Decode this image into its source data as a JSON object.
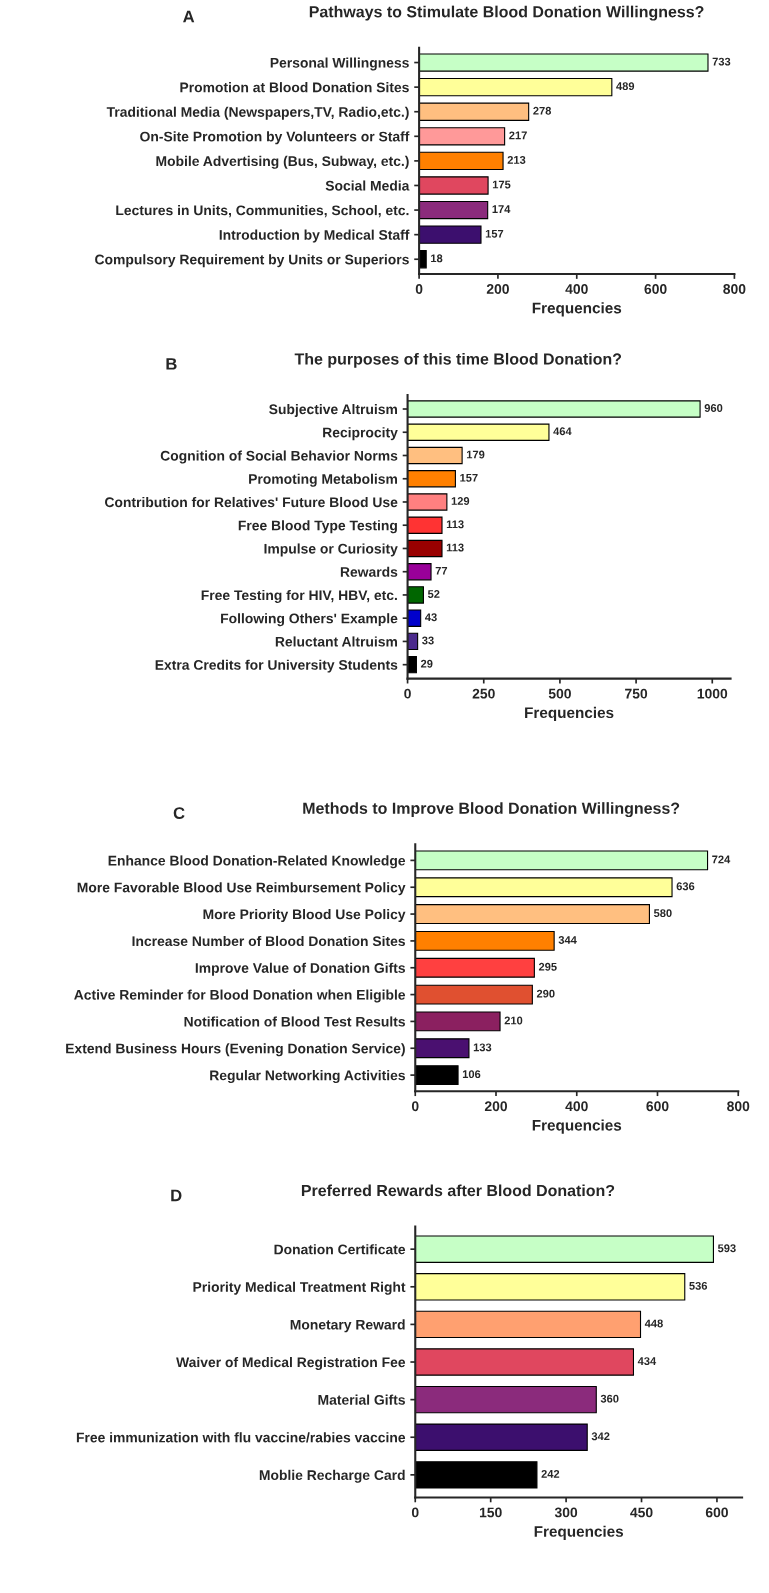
{
  "chart_data": [
    {
      "type": "bar",
      "orientation": "horizontal",
      "title": "Pathways to Stimulate Blood Donation Willingness?",
      "annotations": [
        "A"
      ],
      "xlabel": "Frequencies",
      "categories": [
        "Personal Willingness",
        "Promotion at Blood Donation Sites",
        "Traditional Media (Newspapers,TV, Radio,etc.)",
        "On-Site Promotion by Volunteers or Staff",
        "Mobile Advertising (Bus, Subway, etc.)",
        "Social Media",
        "Lectures in Units, Communities, School, etc.",
        "Introduction by Medical Staff",
        "Compulsory Requirement by Units or Superiors"
      ],
      "values": [
        733,
        489,
        278,
        217,
        213,
        175,
        174,
        157,
        18
      ],
      "colors": [
        "#c6ffc6",
        "#ffff99",
        "#ffbf80",
        "#ff9999",
        "#ff8000",
        "#e0475f",
        "#8b2b7c",
        "#3c0f6e",
        "#000000"
      ],
      "xlim": [
        0,
        800
      ],
      "xticks": [
        0,
        200,
        400,
        600,
        800
      ],
      "data_labels": true,
      "grid": false,
      "legend": false
    },
    {
      "type": "bar",
      "orientation": "horizontal",
      "title": "The purposes of this time Blood Donation?",
      "annotations": [
        "B"
      ],
      "xlabel": "Frequencies",
      "categories": [
        "Subjective Altruism",
        "Reciprocity",
        "Cognition of Social Behavior Norms",
        "Promoting Metabolism",
        "Contribution for Relatives' Future Blood Use",
        "Free Blood Type Testing",
        "Impulse or Curiosity",
        "Rewards",
        "Free Testing for HIV, HBV, etc.",
        "Following Others' Example",
        "Reluctant Altruism",
        "Extra Credits for University Students"
      ],
      "values": [
        960,
        464,
        179,
        157,
        129,
        113,
        113,
        77,
        52,
        43,
        33,
        29
      ],
      "colors": [
        "#c6ffc6",
        "#ffff99",
        "#ffbf80",
        "#ff8000",
        "#ff8080",
        "#ff3333",
        "#990000",
        "#990099",
        "#006600",
        "#0000cc",
        "#4b2a8c",
        "#000000"
      ],
      "xlim": [
        0,
        1060
      ],
      "xticks": [
        0,
        250,
        500,
        750,
        1000
      ],
      "data_labels": true,
      "grid": false,
      "legend": false
    },
    {
      "type": "bar",
      "orientation": "horizontal",
      "title": "Methods to Improve Blood Donation Willingness?",
      "annotations": [
        "C"
      ],
      "xlabel": "Frequencies",
      "categories": [
        "Enhance Blood Donation-Related Knowledge",
        "More Favorable Blood Use Reimbursement Policy",
        "More Priority Blood Use Policy",
        "Increase Number of Blood Donation Sites",
        "Improve Value of Donation Gifts",
        "Active Reminder for Blood Donation when Eligible",
        "Notification of Blood Test Results",
        "Extend Business Hours (Evening Donation Service)",
        "Regular Networking Activities"
      ],
      "values": [
        724,
        636,
        580,
        344,
        295,
        290,
        210,
        133,
        106
      ],
      "colors": [
        "#c6ffc6",
        "#ffff99",
        "#ffbf80",
        "#ff8000",
        "#ff4040",
        "#e05030",
        "#8b2060",
        "#4a1070",
        "#000000"
      ],
      "xlim": [
        0,
        800
      ],
      "xticks": [
        0,
        200,
        400,
        600,
        800
      ],
      "data_labels": true,
      "grid": false,
      "legend": false
    },
    {
      "type": "bar",
      "orientation": "horizontal",
      "title": "Preferred Rewards after Blood Donation?",
      "annotations": [
        "D"
      ],
      "xlabel": "Frequencies",
      "categories": [
        "Donation Certificate",
        "Priority Medical Treatment Right",
        "Monetary Reward",
        "Waiver of Medical Registration Fee",
        "Material Gifts",
        "Free immunization with flu vaccine/rabies vaccine",
        "Moblie Recharge Card"
      ],
      "values": [
        593,
        536,
        448,
        434,
        360,
        342,
        242
      ],
      "colors": [
        "#c6ffc6",
        "#ffff99",
        "#ffa070",
        "#e0475f",
        "#8b2b7c",
        "#3c0f6e",
        "#000000"
      ],
      "xlim": [
        0,
        650
      ],
      "xticks": [
        0,
        150,
        300,
        450,
        600
      ],
      "data_labels": true,
      "grid": false,
      "legend": false
    }
  ]
}
